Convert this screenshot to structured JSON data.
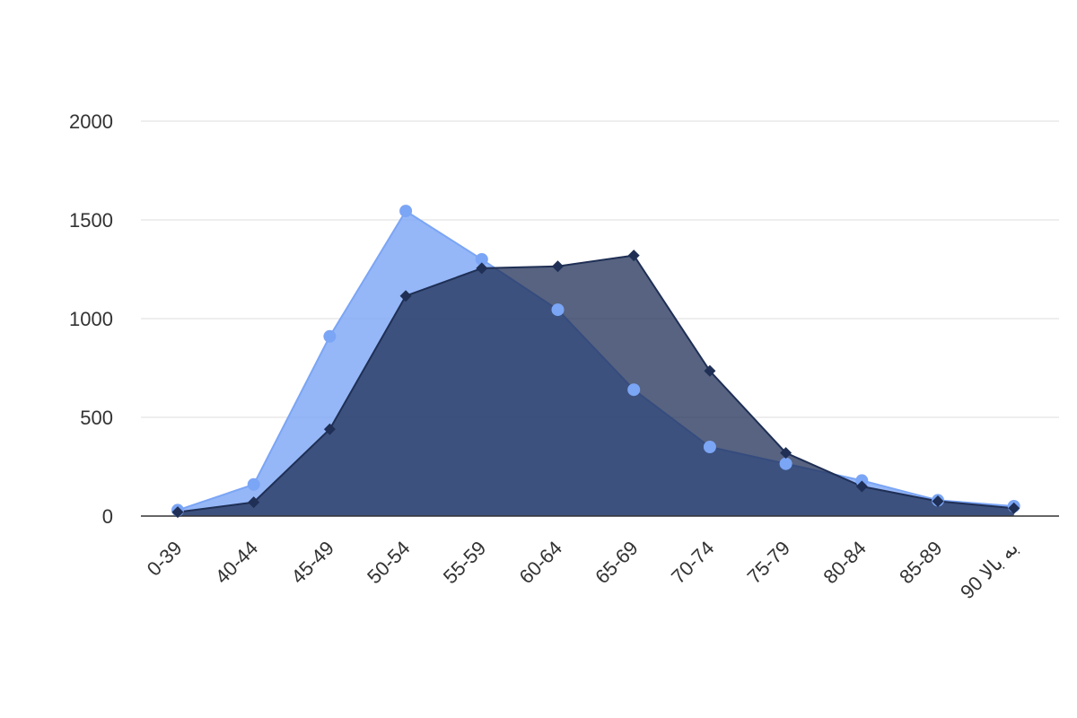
{
  "chart_data": {
    "type": "area",
    "categories": [
      "0-39",
      "40-44",
      "45-49",
      "50-54",
      "55-59",
      "60-64",
      "65-69",
      "70-74",
      "75-79",
      "80-84",
      "85-89",
      "90 به بالا"
    ],
    "series": [
      {
        "color": "#7ba5f5",
        "marker": "circle",
        "values": [
          30,
          160,
          910,
          1545,
          1300,
          1045,
          640,
          350,
          265,
          180,
          80,
          50
        ]
      },
      {
        "color": "#1f2f55",
        "marker": "diamond",
        "values": [
          20,
          70,
          440,
          1115,
          1255,
          1265,
          1320,
          735,
          320,
          150,
          75,
          40
        ]
      }
    ],
    "yticks": [
      "0",
      "500",
      "1000",
      "1500",
      "2000"
    ],
    "ylim": [
      0,
      2000
    ],
    "grid": true,
    "legend": "none"
  }
}
